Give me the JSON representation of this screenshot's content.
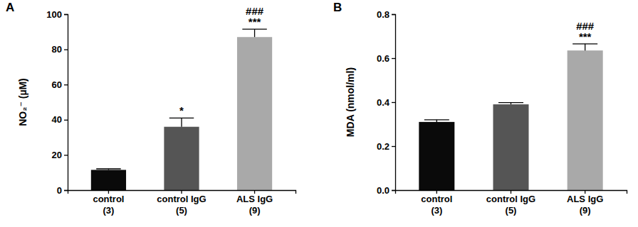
{
  "chart_data": [
    {
      "type": "bar",
      "title": "A",
      "y_label": "NO₂⁻ (µM)",
      "categories": [
        "control\n(3)",
        "control IgG\n(5)",
        "ALS IgG\n(9)"
      ],
      "values": [
        11.5,
        36,
        87
      ],
      "errors": [
        0.6,
        5,
        4.5
      ],
      "colors": [
        "#0a0a0a",
        "#555555",
        "#a9a9a9"
      ],
      "annotations": [
        [],
        [
          "*"
        ],
        [
          "###",
          "***"
        ]
      ],
      "ylim": [
        0,
        100
      ],
      "yticks": [
        0,
        20,
        40,
        60,
        80,
        100
      ]
    },
    {
      "type": "bar",
      "title": "B",
      "y_label": "MDA (nmol/ml)",
      "categories": [
        "control\n(3)",
        "control IgG\n(5)",
        "ALS IgG\n(9)"
      ],
      "values": [
        0.31,
        0.39,
        0.635
      ],
      "errors": [
        0.01,
        0.008,
        0.03
      ],
      "colors": [
        "#0a0a0a",
        "#555555",
        "#a9a9a9"
      ],
      "annotations": [
        [],
        [],
        [
          "###",
          "***"
        ]
      ],
      "ylim": [
        0,
        0.8
      ],
      "yticks": [
        {
          "value": 0,
          "label": "0.0"
        },
        0.2,
        0.4,
        0.6,
        0.8
      ]
    }
  ]
}
